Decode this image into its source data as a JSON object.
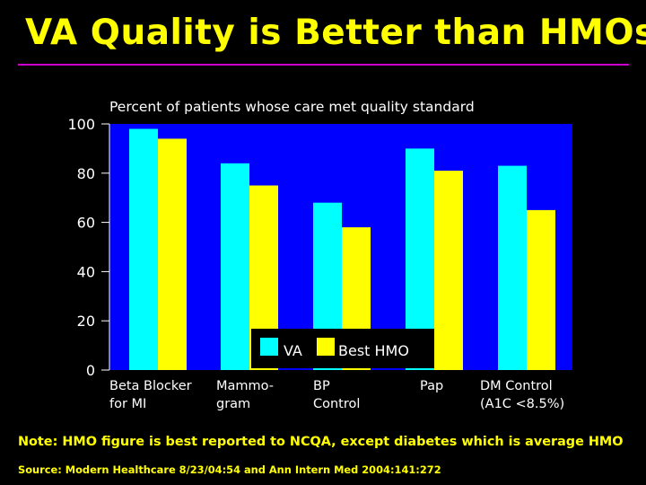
{
  "slide": {
    "title": "VA Quality is Better than HMOs",
    "note": "Note: HMO figure is best reported to NCQA, except diabetes which is average HMO",
    "source": "Source: Modern Healthcare 8/23/04:54 and Ann Intern Med 2004:141:272"
  },
  "colors": {
    "title": "#ffff00",
    "rule": "#cc00cc",
    "plot_background": "#0000ff",
    "va": "#00ffff",
    "hmo": "#ffff00",
    "text": "#ffffff"
  },
  "chart_data": {
    "type": "bar",
    "title": "Percent of patients whose care met quality standard",
    "categories": [
      [
        "Beta Blocker",
        "for MI"
      ],
      [
        "Mammo-",
        "gram"
      ],
      [
        "BP",
        "Control"
      ],
      [
        "Pap"
      ],
      [
        "DM Control",
        "(A1C <8.5%)"
      ]
    ],
    "series": [
      {
        "name": "VA",
        "color": "#00ffff",
        "values": [
          98,
          84,
          68,
          90,
          83
        ]
      },
      {
        "name": "Best HMO",
        "color": "#ffff00",
        "values": [
          94,
          75,
          58,
          81,
          65
        ]
      }
    ],
    "yticks": [
      "0",
      "20",
      "40",
      "60",
      "80",
      "100"
    ],
    "ylim": [
      0,
      100
    ],
    "grid": false,
    "legend_position": "bottom-center inside plot"
  }
}
